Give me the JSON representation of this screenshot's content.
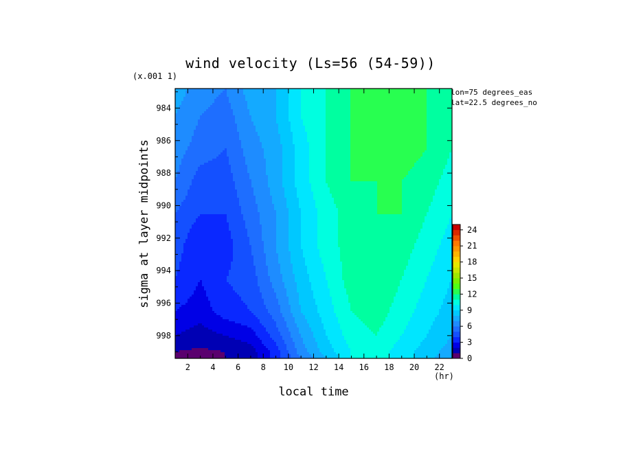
{
  "chart_data": {
    "type": "heatmap",
    "title": "wind velocity (Ls=56 (54-59))",
    "xlabel": "local time",
    "x_unit": "(hr)",
    "ylabel": "sigma at layer midpoints",
    "y_multiplier": "(x.001 1)",
    "annotations": [
      "lon=75 degrees_eas",
      "lat=22.5 degrees_no"
    ],
    "x_ticks": [
      "2",
      "4",
      "6",
      "8",
      "10",
      "12",
      "14",
      "16",
      "18",
      "20",
      "22"
    ],
    "y_ticks": [
      "984",
      "986",
      "988",
      "990",
      "992",
      "994",
      "996",
      "998"
    ],
    "xlim": [
      1,
      23
    ],
    "ylim": [
      999.4,
      982.8
    ],
    "x": [
      1,
      3,
      5,
      7,
      9,
      11,
      13,
      15,
      17,
      19,
      21,
      23
    ],
    "y": [
      982.8,
      984.5,
      986.5,
      988.5,
      990.5,
      992.5,
      994.5,
      996.5,
      998.0,
      999.0,
      999.4
    ],
    "z": [
      [
        7.5,
        6.5,
        6.0,
        7.5,
        8.0,
        10.0,
        11.0,
        12.0,
        12.5,
        12.5,
        12.0,
        11.5
      ],
      [
        7.0,
        6.0,
        5.5,
        7.0,
        8.0,
        10.0,
        11.0,
        12.0,
        12.5,
        12.5,
        12.0,
        11.5
      ],
      [
        6.5,
        5.5,
        5.0,
        6.5,
        7.5,
        9.5,
        11.0,
        12.0,
        12.5,
        12.5,
        12.0,
        11.0
      ],
      [
        6.0,
        4.5,
        4.5,
        6.0,
        7.5,
        9.5,
        11.0,
        12.0,
        12.0,
        12.0,
        11.5,
        10.5
      ],
      [
        5.0,
        4.0,
        4.0,
        5.5,
        7.0,
        9.0,
        10.5,
        11.5,
        12.0,
        12.0,
        11.0,
        10.0
      ],
      [
        4.5,
        3.0,
        3.5,
        5.0,
        7.0,
        9.0,
        10.5,
        11.5,
        12.0,
        11.5,
        10.5,
        9.5
      ],
      [
        4.0,
        3.0,
        4.0,
        4.5,
        6.5,
        8.5,
        10.0,
        11.5,
        12.0,
        11.0,
        10.0,
        9.0
      ],
      [
        3.0,
        2.5,
        3.5,
        4.0,
        5.5,
        8.0,
        9.5,
        11.0,
        11.5,
        10.5,
        9.5,
        8.5
      ],
      [
        2.0,
        1.5,
        2.0,
        2.5,
        4.5,
        7.0,
        9.0,
        10.5,
        11.0,
        10.0,
        9.0,
        8.0
      ],
      [
        1.0,
        0.8,
        1.0,
        1.5,
        3.5,
        6.5,
        8.5,
        10.0,
        10.5,
        9.5,
        8.5,
        7.5
      ],
      [
        0.4,
        0.8,
        1.0,
        1.5,
        3.5,
        6.0,
        8.0,
        10.0,
        10.5,
        9.5,
        8.5,
        7.0
      ]
    ],
    "levels": [
      0,
      1,
      2,
      3,
      4,
      5,
      6,
      7,
      8,
      9,
      10,
      11,
      12,
      13,
      14,
      15,
      16,
      17,
      18,
      19,
      20,
      21,
      22,
      23,
      24,
      25
    ],
    "colorbar_ticks": [
      "0",
      "3",
      "6",
      "9",
      "12",
      "15",
      "18",
      "21",
      "24"
    ],
    "colors": [
      "#5a006e",
      "#0000b4",
      "#0000e6",
      "#0a28ff",
      "#1450ff",
      "#1e6eff",
      "#1e8cff",
      "#14aaff",
      "#00c8ff",
      "#00e6ff",
      "#00ffe0",
      "#00ffa0",
      "#28ff50",
      "#50ff14",
      "#78f000",
      "#a0e600",
      "#c8e600",
      "#e6e600",
      "#ffd200",
      "#ffb400",
      "#ff9600",
      "#ff7800",
      "#f05000",
      "#dc2800",
      "#c80000"
    ]
  }
}
